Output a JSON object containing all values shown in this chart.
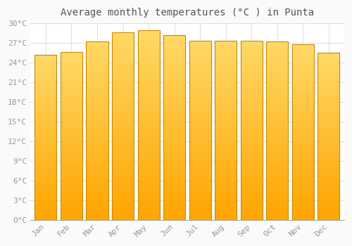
{
  "title": "Average monthly temperatures (°C ) in Punta",
  "months": [
    "Jan",
    "Feb",
    "Mar",
    "Apr",
    "May",
    "Jun",
    "Jul",
    "Aug",
    "Sep",
    "Oct",
    "Nov",
    "Dec"
  ],
  "values": [
    25.2,
    25.6,
    27.2,
    28.6,
    28.9,
    28.2,
    27.3,
    27.3,
    27.3,
    27.2,
    26.8,
    25.5
  ],
  "bar_color_top": "#FFD966",
  "bar_color_bottom": "#FFA500",
  "bar_edge_color": "#CC8800",
  "background_color": "#FAFAFA",
  "plot_bg_color": "#FFFFFF",
  "grid_color": "#E0E0E0",
  "tick_label_color": "#999999",
  "title_color": "#555555",
  "ylim": [
    0,
    30
  ],
  "ytick_interval": 3,
  "title_fontsize": 10,
  "tick_fontsize": 8,
  "bar_width": 0.85
}
